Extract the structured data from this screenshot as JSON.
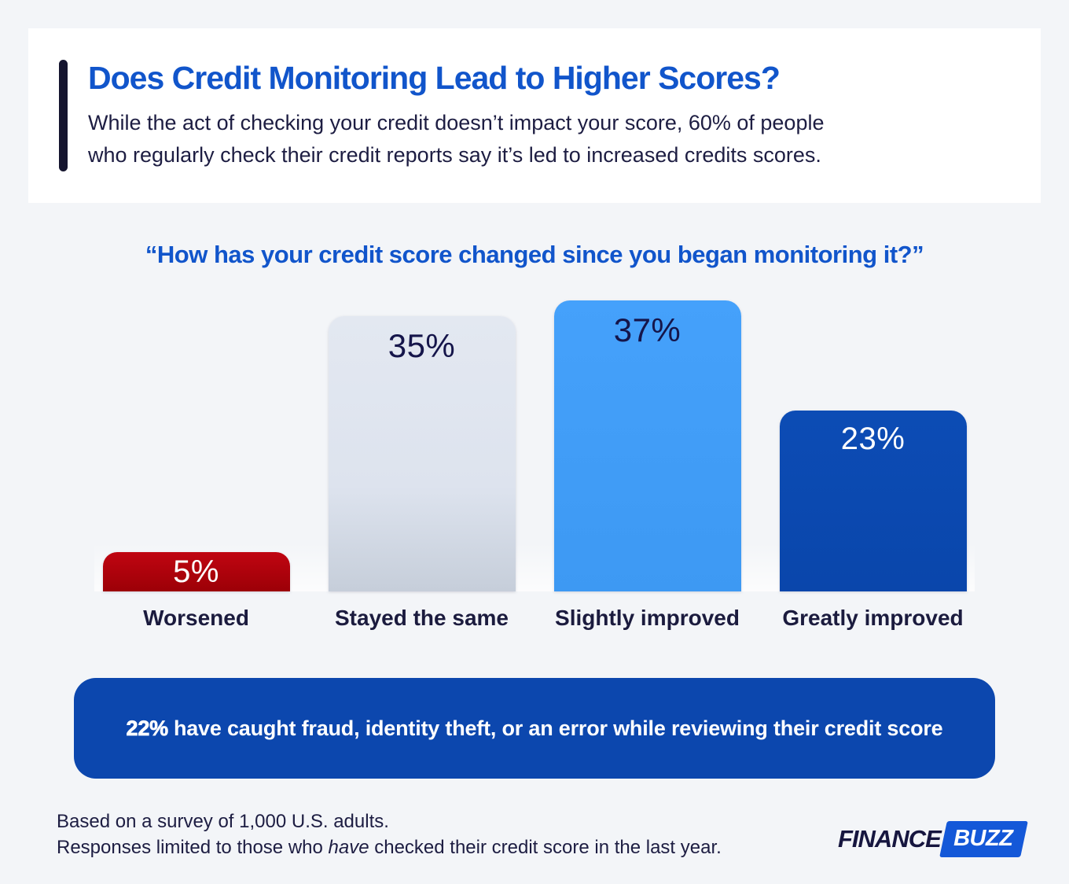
{
  "colors": {
    "page_background": "#f3f5f8",
    "card_background": "#ffffff",
    "brand_blue": "#1155cb",
    "navy_text": "#1d1d42",
    "banner_blue": "#0c47ae"
  },
  "header": {
    "title": "Does Credit Monitoring Lead to Higher Scores?",
    "subtitle_line1": "While the act of checking your credit doesn’t impact your score, 60% of people",
    "subtitle_line2": "who regularly check their credit reports say it’s led to increased credits scores."
  },
  "question": "“How has your credit score changed since you began monitoring it?”",
  "chart_data": {
    "type": "bar",
    "title": "“How has your credit score changed since you began monitoring it?”",
    "categories": [
      "Worsened",
      "Stayed the same",
      "Slightly improved",
      "Greatly improved"
    ],
    "values": [
      5,
      35,
      37,
      23
    ],
    "value_labels": [
      "5%",
      "35%",
      "37%",
      "23%"
    ],
    "bar_colors": [
      "#b30410",
      "#dde3ee",
      "#3f9ffb",
      "#0a49b2"
    ],
    "label_colors": [
      "#ffffff",
      "#15154a",
      "#15154a",
      "#ffffff"
    ],
    "xlabel": "",
    "ylabel": "",
    "ylim": [
      0,
      40
    ],
    "grid": false,
    "legend": false
  },
  "banner": {
    "bold": "22%",
    "text": "have caught fraud, identity theft, or an error while reviewing their credit score"
  },
  "footer": {
    "line1": "Based on a survey of 1,000 U.S. adults.",
    "line2_pre": "Responses limited to those who ",
    "line2_italic": "have",
    "line2_post": " checked their credit score in the last year."
  },
  "logo": {
    "finance": "FINANCE",
    "buzz": "BUZZ"
  }
}
